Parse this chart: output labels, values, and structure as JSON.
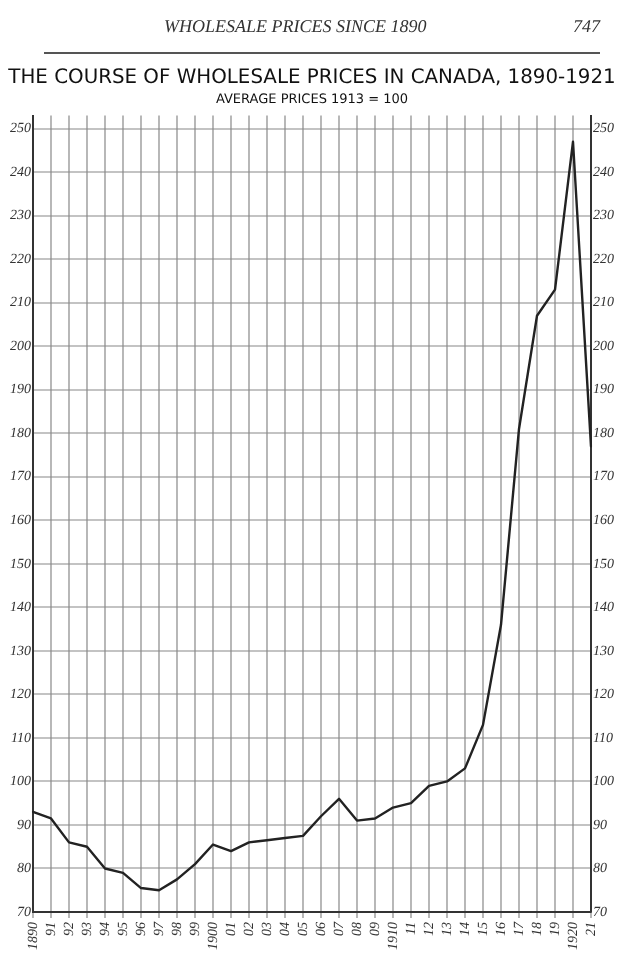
{
  "chart_data": {
    "type": "line",
    "title": "THE COURSE OF WHOLESALE PRICES IN CANADA, 1890-1921",
    "subtitle": "AVERAGE PRICES 1913 = 100",
    "annotations": [
      "WHOLESALE PRICES SINCE 1890",
      "747"
    ],
    "categories": [
      "1890",
      "91",
      "92",
      "93",
      "94",
      "95",
      "96",
      "97",
      "98",
      "99",
      "1900",
      "01",
      "02",
      "03",
      "04",
      "05",
      "06",
      "07",
      "08",
      "09",
      "1910",
      "11",
      "12",
      "13",
      "14",
      "15",
      "16",
      "17",
      "18",
      "19",
      "1920",
      "21"
    ],
    "series": [
      {
        "color": "#222222",
        "values": [
          93,
          91.5,
          86,
          85,
          80,
          79,
          75.5,
          75,
          77.5,
          81,
          85.5,
          84,
          86,
          86.5,
          87,
          87.5,
          92,
          96,
          91,
          91.5,
          94,
          95,
          99,
          100,
          103,
          113,
          136,
          181,
          207,
          213,
          247,
          177
        ]
      }
    ],
    "ylim": [
      70,
      253
    ],
    "yticks": [
      70,
      80,
      90,
      100,
      110,
      120,
      130,
      140,
      150,
      160,
      170,
      180,
      190,
      200,
      210,
      220,
      230,
      240,
      250
    ],
    "y2lim": [
      70,
      253
    ],
    "y2ticks": [
      70,
      80,
      90,
      100,
      110,
      120,
      130,
      140,
      150,
      160,
      170,
      180,
      190,
      200,
      210,
      220,
      230,
      240,
      250
    ],
    "grid": true,
    "marker": "none",
    "line_style": "solid",
    "legend": false
  }
}
